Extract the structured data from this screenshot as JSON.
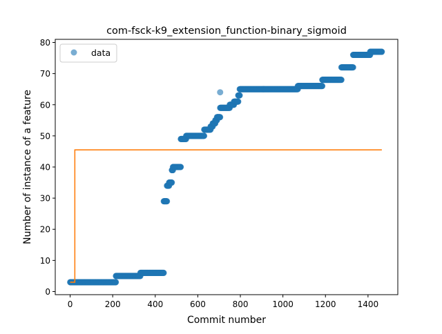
{
  "chart_data": {
    "type": "scatter",
    "title": "com-fsck-k9_extension_function-binary_sigmoid",
    "xlabel": "Commit number",
    "ylabel": "Number of instance of a feature",
    "xlim": [
      -70,
      1540
    ],
    "ylim": [
      -1,
      81
    ],
    "x_ticks": [
      0,
      200,
      400,
      600,
      800,
      1000,
      1200,
      1400
    ],
    "y_ticks": [
      0,
      10,
      20,
      30,
      40,
      50,
      60,
      70,
      80
    ],
    "legend": {
      "position": "top-left",
      "entries": [
        "data"
      ]
    },
    "grid": false,
    "colors": {
      "data": "#1f77b4",
      "fit": "#ff7f0e"
    },
    "series": [
      {
        "name": "data",
        "kind": "scatter",
        "segments": [
          {
            "x_start": 0,
            "x_end": 215,
            "y": 3
          },
          {
            "x_start": 215,
            "x_end": 330,
            "y": 5
          },
          {
            "x_start": 330,
            "x_end": 440,
            "y": 6
          },
          {
            "x_start": 440,
            "x_end": 455,
            "y": 29
          },
          {
            "x_start": 455,
            "x_end": 465,
            "y": 34
          },
          {
            "x_start": 465,
            "x_end": 478,
            "y": 35
          },
          {
            "x_start": 478,
            "x_end": 483,
            "y": 39
          },
          {
            "x_start": 483,
            "x_end": 520,
            "y": 40
          },
          {
            "x_start": 520,
            "x_end": 545,
            "y": 49
          },
          {
            "x_start": 545,
            "x_end": 630,
            "y": 50
          },
          {
            "x_start": 630,
            "x_end": 660,
            "y": 52
          },
          {
            "x_start": 660,
            "x_end": 670,
            "y": 53
          },
          {
            "x_start": 670,
            "x_end": 682,
            "y": 54
          },
          {
            "x_start": 682,
            "x_end": 690,
            "y": 55
          },
          {
            "x_start": 690,
            "x_end": 705,
            "y": 56
          },
          {
            "x_start": 705,
            "x_end": 750,
            "y": 59
          },
          {
            "x_start": 750,
            "x_end": 770,
            "y": 60
          },
          {
            "x_start": 770,
            "x_end": 790,
            "y": 61
          },
          {
            "x_start": 790,
            "x_end": 797,
            "y": 63
          },
          {
            "x_start": 797,
            "x_end": 1070,
            "y": 65
          },
          {
            "x_start": 1070,
            "x_end": 1185,
            "y": 66
          },
          {
            "x_start": 1185,
            "x_end": 1275,
            "y": 68
          },
          {
            "x_start": 1275,
            "x_end": 1330,
            "y": 72
          },
          {
            "x_start": 1330,
            "x_end": 1410,
            "y": 76
          },
          {
            "x_start": 1410,
            "x_end": 1465,
            "y": 77
          }
        ],
        "outliers": [
          {
            "x": 705,
            "y": 64
          }
        ]
      },
      {
        "kind": "line",
        "points": [
          [
            0,
            3
          ],
          [
            22,
            3
          ],
          [
            22,
            45.5
          ],
          [
            1465,
            45.5
          ]
        ]
      }
    ]
  }
}
